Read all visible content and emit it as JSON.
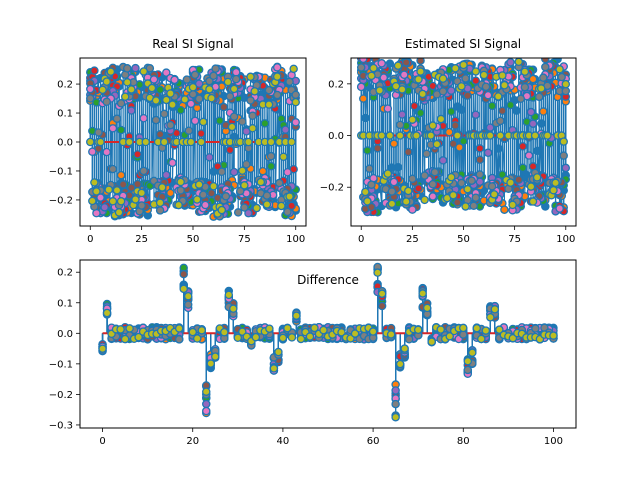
{
  "figure": {
    "background": "#ffffff"
  },
  "colors": {
    "tab": [
      "#1f77b4",
      "#ff7f0e",
      "#2ca02c",
      "#d62728",
      "#9467bd",
      "#8c564b",
      "#e377c2",
      "#7f7f7f",
      "#bcbd22",
      "#17becf"
    ],
    "stem_line": "#1f77b4",
    "base_line": "#d62728"
  },
  "chart_data": [
    {
      "id": "real",
      "type": "stem",
      "title": "Real SI Signal",
      "xlabel": "",
      "ylabel": "",
      "xlim": [
        -5,
        105
      ],
      "ylim": [
        -0.29,
        0.29
      ],
      "xticks": [
        0,
        25,
        50,
        75,
        100
      ],
      "yticks": [
        -0.2,
        -0.1,
        0.0,
        0.1,
        0.2
      ],
      "xtick_labels": [
        "0",
        "25",
        "50",
        "75",
        "100"
      ],
      "ytick_labels": [
        "−0.2",
        "−0.1",
        "0.0",
        "0.1",
        "0.2"
      ],
      "grid": false,
      "x_range": [
        0,
        100
      ],
      "n_points": 101,
      "n_series": 9,
      "amplitude": 0.26,
      "envelope": [
        0.25,
        0.26,
        0.26,
        0.24,
        0.22,
        0.25,
        0.26,
        0.25,
        0.23,
        0.26,
        0.25
      ]
    },
    {
      "id": "estimated",
      "type": "stem",
      "title": "Estimated SI Signal",
      "xlabel": "",
      "ylabel": "",
      "xlim": [
        -5,
        105
      ],
      "ylim": [
        -0.35,
        0.3
      ],
      "xticks": [
        0,
        25,
        50,
        75,
        100
      ],
      "yticks": [
        -0.2,
        0.0,
        0.2
      ],
      "xtick_labels": [
        "0",
        "25",
        "50",
        "75",
        "100"
      ],
      "ytick_labels": [
        "−0.2",
        "0.0",
        "0.2"
      ],
      "grid": false,
      "x_range": [
        0,
        100
      ],
      "n_points": 101,
      "n_series": 9,
      "amplitude": 0.27,
      "envelope": [
        0.3,
        0.28,
        0.29,
        0.25,
        0.27,
        0.28,
        0.27,
        0.29,
        0.26,
        0.3,
        0.27
      ]
    },
    {
      "id": "difference",
      "type": "stem",
      "title": "Difference",
      "xlabel": "",
      "ylabel": "",
      "xlim": [
        -5,
        105
      ],
      "ylim": [
        -0.31,
        0.24
      ],
      "xticks": [
        0,
        20,
        40,
        60,
        80,
        100
      ],
      "yticks": [
        -0.3,
        -0.2,
        -0.1,
        0.0,
        0.1,
        0.2
      ],
      "xtick_labels": [
        "0",
        "20",
        "40",
        "60",
        "80",
        "100"
      ],
      "ytick_labels": [
        "−0.3",
        "−0.2",
        "−0.1",
        "0.0",
        "0.1",
        "0.2"
      ],
      "grid": false,
      "x_range": [
        0,
        100
      ],
      "n_points": 101,
      "n_series": 9,
      "amplitude": 0.02,
      "spikes": [
        {
          "x": 0,
          "y": -0.06
        },
        {
          "x": 1,
          "y": 0.1
        },
        {
          "x": 18,
          "y": 0.22
        },
        {
          "x": 19,
          "y": 0.14
        },
        {
          "x": 23,
          "y": -0.3
        },
        {
          "x": 24,
          "y": -0.12
        },
        {
          "x": 25,
          "y": -0.08
        },
        {
          "x": 28,
          "y": 0.15
        },
        {
          "x": 29,
          "y": 0.1
        },
        {
          "x": 33,
          "y": -0.04
        },
        {
          "x": 38,
          "y": -0.14
        },
        {
          "x": 39,
          "y": -0.1
        },
        {
          "x": 43,
          "y": 0.07
        },
        {
          "x": 54,
          "y": -0.02
        },
        {
          "x": 61,
          "y": 0.22
        },
        {
          "x": 62,
          "y": 0.14
        },
        {
          "x": 65,
          "y": -0.3
        },
        {
          "x": 66,
          "y": -0.12
        },
        {
          "x": 67,
          "y": -0.08
        },
        {
          "x": 71,
          "y": 0.15
        },
        {
          "x": 72,
          "y": 0.1
        },
        {
          "x": 73,
          "y": -0.03
        },
        {
          "x": 81,
          "y": -0.14
        },
        {
          "x": 82,
          "y": -0.1
        },
        {
          "x": 86,
          "y": 0.09
        },
        {
          "x": 87,
          "y": 0.09
        }
      ]
    }
  ]
}
